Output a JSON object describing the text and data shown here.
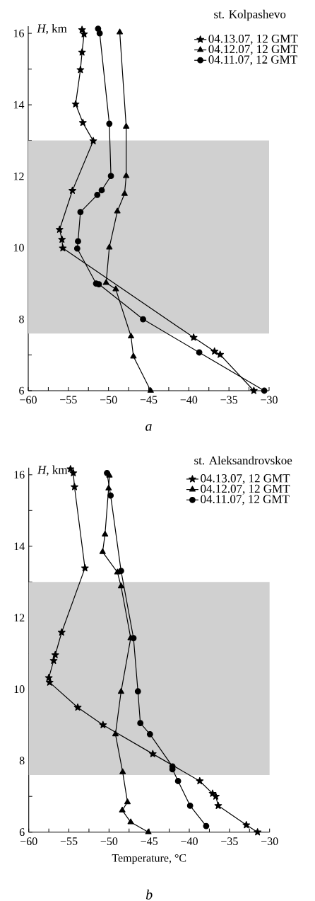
{
  "chart_data": [
    {
      "type": "line",
      "legend_title": "st. Kolpashevo",
      "ylabel": "*H*, km",
      "annotations": [
        "a"
      ],
      "legend": "top right",
      "xlim": [
        -60,
        -30
      ],
      "ylim": [
        6,
        16.2
      ],
      "xticks": [
        {
          "value": -60,
          "label": "−60"
        },
        {
          "value": -57.5,
          "label": null
        },
        {
          "value": -55,
          "label": "−55"
        },
        {
          "value": -52.5,
          "label": null
        },
        {
          "value": -50,
          "label": "−50"
        },
        {
          "value": -47.5,
          "label": null
        },
        {
          "value": -45,
          "label": "−45"
        },
        {
          "value": -42.5,
          "label": null
        },
        {
          "value": -40,
          "label": "−40"
        },
        {
          "value": -37.5,
          "label": null
        },
        {
          "value": -35,
          "label": "−35"
        },
        {
          "value": -32.5,
          "label": null
        },
        {
          "value": -30,
          "label": "−30"
        }
      ],
      "yticks": [
        6,
        {
          "value": 7,
          "label": null
        },
        8,
        {
          "value": 9,
          "label": null
        },
        10,
        {
          "value": 11,
          "label": null
        },
        12,
        {
          "value": 13,
          "label": null
        },
        14,
        {
          "value": 15,
          "label": null
        },
        16
      ],
      "bands": [
        {
          "axis": "y",
          "from": 7.6,
          "to": 13,
          "color": "#d0d0d0"
        }
      ],
      "series": [
        {
          "name": "04.13.07, 12 GMT",
          "color": "#000000",
          "marker": "star",
          "x": [
            -53.3,
            -53.05,
            -53.3,
            -53.5,
            -54.1,
            -53.2,
            -51.9,
            -54.5,
            -56.1,
            -55.8,
            -55.7,
            -39.4,
            -36.8,
            -36.1,
            -31.9
          ],
          "values": [
            16.1,
            15.98,
            15.47,
            14.98,
            14.02,
            13.5,
            12.99,
            11.6,
            10.51,
            10.23,
            9.99,
            7.49,
            7.1,
            7.01,
            6.0
          ]
        },
        {
          "name": "04.12.07, 12 GMT",
          "color": "#000000",
          "marker": "triangle",
          "x": [
            -48.6,
            -47.8,
            -47.8,
            -48.0,
            -48.9,
            -49.9,
            -50.3,
            -49.1,
            -47.2,
            -46.9,
            -44.75
          ],
          "values": [
            16.03,
            13.39,
            12.01,
            11.51,
            11.02,
            10.01,
            9.02,
            8.84,
            7.52,
            6.96,
            6.0
          ]
        },
        {
          "name": "04.11.07, 12 GMT",
          "color": "#000000",
          "marker": "circle",
          "x": [
            -51.3,
            -51.1,
            -49.9,
            -49.7,
            -50.85,
            -51.4,
            -53.5,
            -53.8,
            -53.9,
            -51.55,
            -51.2,
            -45.7,
            -38.7,
            -30.6
          ],
          "values": [
            16.13,
            16.0,
            13.47,
            12.01,
            11.61,
            11.48,
            11.0,
            10.18,
            9.98,
            9.0,
            8.98,
            8.0,
            7.07,
            6.0
          ]
        }
      ]
    },
    {
      "type": "line",
      "legend_title": "st. Aleksandrovskoe",
      "ylabel": "*H*, km",
      "xlabel": "Temperature, °C",
      "annotations": [
        "b"
      ],
      "legend": "top right",
      "xlim": [
        -60,
        -30
      ],
      "ylim": [
        6,
        16.2
      ],
      "xticks": [
        {
          "value": -60,
          "label": "−60"
        },
        {
          "value": -57.5,
          "label": null
        },
        {
          "value": -55,
          "label": "−55"
        },
        {
          "value": -52.5,
          "label": null
        },
        {
          "value": -50,
          "label": "−50"
        },
        {
          "value": -47.5,
          "label": null
        },
        {
          "value": -45,
          "label": "−45"
        },
        {
          "value": -42.5,
          "label": null
        },
        {
          "value": -40,
          "label": "−40"
        },
        {
          "value": -37.5,
          "label": null
        },
        {
          "value": -35,
          "label": "−35"
        },
        {
          "value": -32.5,
          "label": null
        },
        {
          "value": -30,
          "label": "−30"
        }
      ],
      "yticks": [
        6,
        {
          "value": 7,
          "label": null
        },
        8,
        {
          "value": 9,
          "label": null
        },
        10,
        {
          "value": 11,
          "label": null
        },
        12,
        {
          "value": 13,
          "label": null
        },
        14,
        {
          "value": 15,
          "label": null
        },
        16
      ],
      "bands": [
        {
          "axis": "y",
          "from": 7.6,
          "to": 13,
          "color": "#d0d0d0"
        }
      ],
      "series": [
        {
          "name": "04.13.07, 12 GMT",
          "color": "#000000",
          "marker": "star",
          "x": [
            -54.8,
            -54.45,
            -54.3,
            -53.0,
            -55.9,
            -56.7,
            -56.9,
            -57.5,
            -57.4,
            -53.9,
            -50.75,
            -44.55,
            -38.7,
            -37.1,
            -36.7,
            -36.4,
            -32.9,
            -31.5
          ],
          "values": [
            16.16,
            16.05,
            15.66,
            13.39,
            11.59,
            10.96,
            10.8,
            10.32,
            10.19,
            9.49,
            9.0,
            8.19,
            7.43,
            7.08,
            7.0,
            6.74,
            6.2,
            6.0
          ]
        },
        {
          "name": "04.12.07, 12 GMT",
          "color": "#000000",
          "marker": "triangle",
          "x": [
            -49.95,
            -50.05,
            -50.5,
            -50.8,
            -48.95,
            -48.5,
            -47.3,
            -48.5,
            -49.2,
            -48.3,
            -47.7,
            -48.35,
            -47.3,
            -45.1
          ],
          "values": [
            15.98,
            15.62,
            14.33,
            13.84,
            13.27,
            12.88,
            11.43,
            9.93,
            8.74,
            7.68,
            6.84,
            6.61,
            6.28,
            6.0
          ]
        },
        {
          "name": "04.11.07, 12 GMT",
          "color": "#000000",
          "marker": "circle",
          "x": [
            -50.25,
            -49.8,
            -48.5,
            -46.95,
            -46.4,
            -46.1,
            -44.9,
            -42.1,
            -42.1,
            -41.4,
            -39.9,
            -37.9
          ],
          "values": [
            16.05,
            15.42,
            13.31,
            11.43,
            9.94,
            9.05,
            8.74,
            7.84,
            7.76,
            7.43,
            6.74,
            6.17
          ]
        }
      ]
    }
  ]
}
